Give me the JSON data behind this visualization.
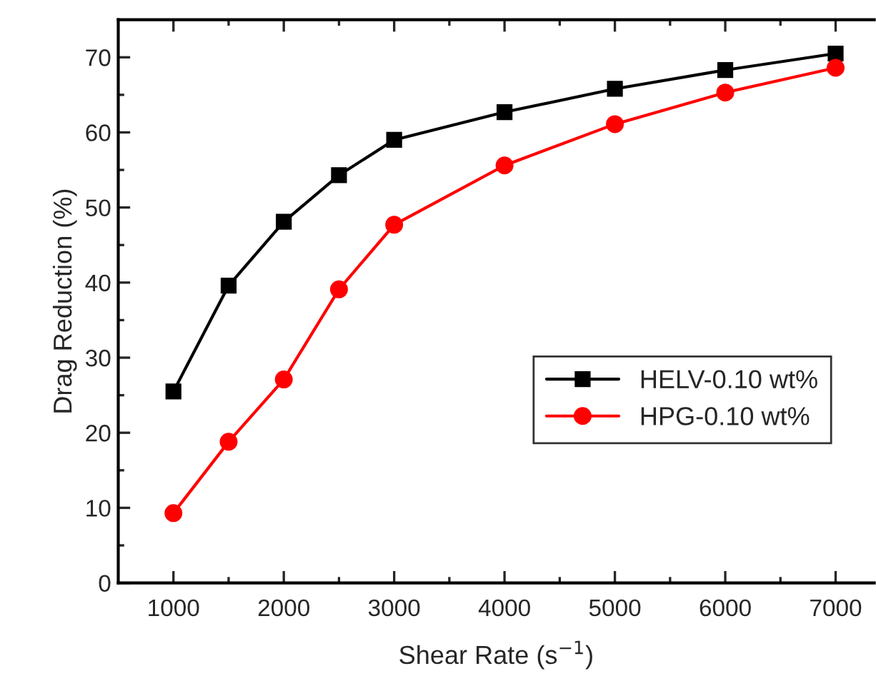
{
  "chart_data": {
    "type": "line",
    "xlabel": "Shear Rate (s$^{−1}$)",
    "ylabel": "Drag Reduction (%)",
    "x": [
      1000,
      1500,
      2000,
      2500,
      3000,
      4000,
      5000,
      6000,
      7000
    ],
    "series": [
      {
        "name": "HELV-0.10 wt%",
        "color": "#000000",
        "marker": "square",
        "values": [
          25.5,
          39.6,
          48.1,
          54.3,
          59.0,
          62.7,
          65.8,
          68.3,
          70.5
        ]
      },
      {
        "name": "HPG-0.10 wt%",
        "color": "#ff0000",
        "marker": "circle",
        "values": [
          9.3,
          18.8,
          27.1,
          39.1,
          47.7,
          55.6,
          61.1,
          65.3,
          68.6
        ]
      }
    ],
    "xlim": [
      500,
      7350
    ],
    "ylim": [
      0,
      75
    ],
    "xticks": [
      1000,
      {
        "value": 1500,
        "label": null
      },
      2000,
      {
        "value": 2500,
        "label": null
      },
      3000,
      {
        "value": 3500,
        "label": null
      },
      4000,
      {
        "value": 4500,
        "label": null
      },
      5000,
      {
        "value": 5500,
        "label": null
      },
      6000,
      {
        "value": 6500,
        "label": null
      },
      7000
    ],
    "yticks": [
      0,
      {
        "value": 5,
        "label": null
      },
      10,
      {
        "value": 15,
        "label": null
      },
      20,
      {
        "value": 25,
        "label": null
      },
      30,
      {
        "value": 35,
        "label": null
      },
      40,
      {
        "value": 45,
        "label": null
      },
      50,
      {
        "value": 55,
        "label": null
      },
      60,
      {
        "value": 65,
        "label": null
      },
      70
    ],
    "grid": false,
    "legend": "right",
    "line_style": "solid"
  }
}
